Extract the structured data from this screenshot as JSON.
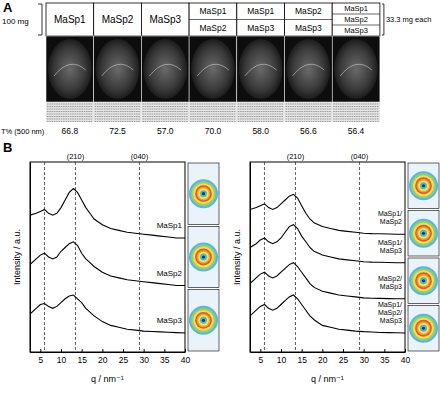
{
  "panel_a": {
    "label": "A",
    "left_note": "100 mg",
    "right_note": "33.3 mg each",
    "row_label": "T% (500 nm)",
    "columns": [
      [
        "MaSp1"
      ],
      [
        "MaSp2"
      ],
      [
        "MaSp3"
      ],
      [
        "MaSp1",
        "MaSp2"
      ],
      [
        "MaSp1",
        "MaSp3"
      ],
      [
        "MaSp2",
        "MaSp3"
      ],
      [
        "MaSp1",
        "MaSp2",
        "MaSp3"
      ]
    ],
    "transmittance": [
      "66.8",
      "72.5",
      "57.0",
      "70.0",
      "58.0",
      "56.6",
      "56.4"
    ]
  },
  "panel_b": {
    "label": "B"
  },
  "chart_data": [
    {
      "type": "line",
      "x_label": "q / nm⁻¹",
      "y_label": "Intensity / a.u.",
      "x": [
        2.5,
        4,
        5,
        6,
        7,
        8,
        9,
        10,
        11,
        12,
        13,
        14,
        15,
        16,
        17,
        18,
        20,
        22,
        24,
        26,
        28,
        30,
        32,
        34,
        36,
        38,
        40
      ],
      "xlim": [
        2.5,
        40
      ],
      "xticks": [
        5,
        10,
        15,
        20,
        25,
        30,
        35,
        40
      ],
      "ylim": [
        0,
        100
      ],
      "tick_labels": "x",
      "grid": false,
      "reference_lines": [
        {
          "value": 6
        },
        {
          "value": 13.5,
          "label": "(210)"
        },
        {
          "value": 29,
          "label": "(040)"
        }
      ],
      "series": [
        {
          "name": "MaSp1",
          "color": "#000000",
          "values": [
            72,
            73,
            74,
            75,
            73,
            72,
            73,
            76,
            80,
            84,
            86,
            84,
            80,
            76,
            73,
            70,
            67,
            65,
            64,
            63,
            62.5,
            62,
            61.5,
            61,
            60.5,
            60,
            60
          ]
        },
        {
          "name": "MaSp2",
          "color": "#000000",
          "values": [
            46,
            49,
            51,
            52,
            50,
            49,
            50,
            53,
            55,
            57,
            58,
            56,
            52,
            49,
            47,
            45,
            42,
            40,
            39,
            38,
            37.5,
            37,
            36.5,
            36,
            35.5,
            35,
            35
          ]
        },
        {
          "name": "MaSp3",
          "color": "#000000",
          "values": [
            20,
            23,
            25,
            25.5,
            24,
            23,
            24,
            26,
            28,
            29.5,
            30,
            28,
            26,
            23,
            21,
            19,
            16,
            14,
            13,
            12,
            11.5,
            11,
            10.8,
            10.6,
            10.4,
            10.2,
            10
          ]
        }
      ]
    },
    {
      "type": "line",
      "x_label": "q / nm⁻¹",
      "y_label": "Intensity / a.u.",
      "x": [
        2.5,
        4,
        5,
        6,
        7,
        8,
        9,
        10,
        11,
        12,
        13,
        14,
        15,
        16,
        17,
        18,
        20,
        22,
        24,
        26,
        28,
        30,
        32,
        34,
        36,
        38,
        40
      ],
      "xlim": [
        2.5,
        40
      ],
      "xticks": [
        5,
        10,
        15,
        20,
        25,
        30,
        35,
        40
      ],
      "ylim": [
        0,
        100
      ],
      "tick_labels": "x",
      "grid": false,
      "reference_lines": [
        {
          "value": 6
        },
        {
          "value": 13.5,
          "label": "(210)"
        },
        {
          "value": 29,
          "label": "(040)"
        }
      ],
      "series": [
        {
          "name": "MaSp1/MaSp2",
          "color": "#000000",
          "values": [
            75,
            76,
            77,
            78,
            76,
            75,
            76,
            78,
            80,
            82,
            83,
            81,
            77,
            73,
            70,
            68,
            66,
            65,
            64,
            63.5,
            63,
            62.5,
            62.3,
            62.2,
            62.1,
            62,
            62
          ]
        },
        {
          "name": "MaSp1/MaSp3",
          "color": "#000000",
          "values": [
            55,
            57,
            59,
            60,
            58,
            57,
            58,
            60,
            63,
            66,
            67,
            65,
            61,
            58,
            55,
            53,
            51,
            50,
            49,
            48.5,
            48,
            47.5,
            47.3,
            47.2,
            47.1,
            47,
            47
          ]
        },
        {
          "name": "MaSp2/MaSp3",
          "color": "#000000",
          "values": [
            36,
            39,
            41,
            42,
            40,
            39,
            40,
            42,
            44,
            46,
            47,
            45,
            42,
            39,
            36,
            34,
            32,
            31,
            30,
            29.5,
            29,
            28.5,
            28.3,
            28.2,
            28.1,
            28,
            28
          ]
        },
        {
          "name": "MaSp1/MaSp2/MaSp3",
          "color": "#000000",
          "values": [
            19,
            22,
            24,
            25,
            23,
            22,
            23,
            25,
            27,
            29,
            30,
            28,
            25,
            22,
            19,
            17,
            14,
            13,
            12,
            11.5,
            11,
            10.7,
            10.5,
            10.3,
            10.2,
            10.1,
            10
          ]
        }
      ]
    }
  ]
}
